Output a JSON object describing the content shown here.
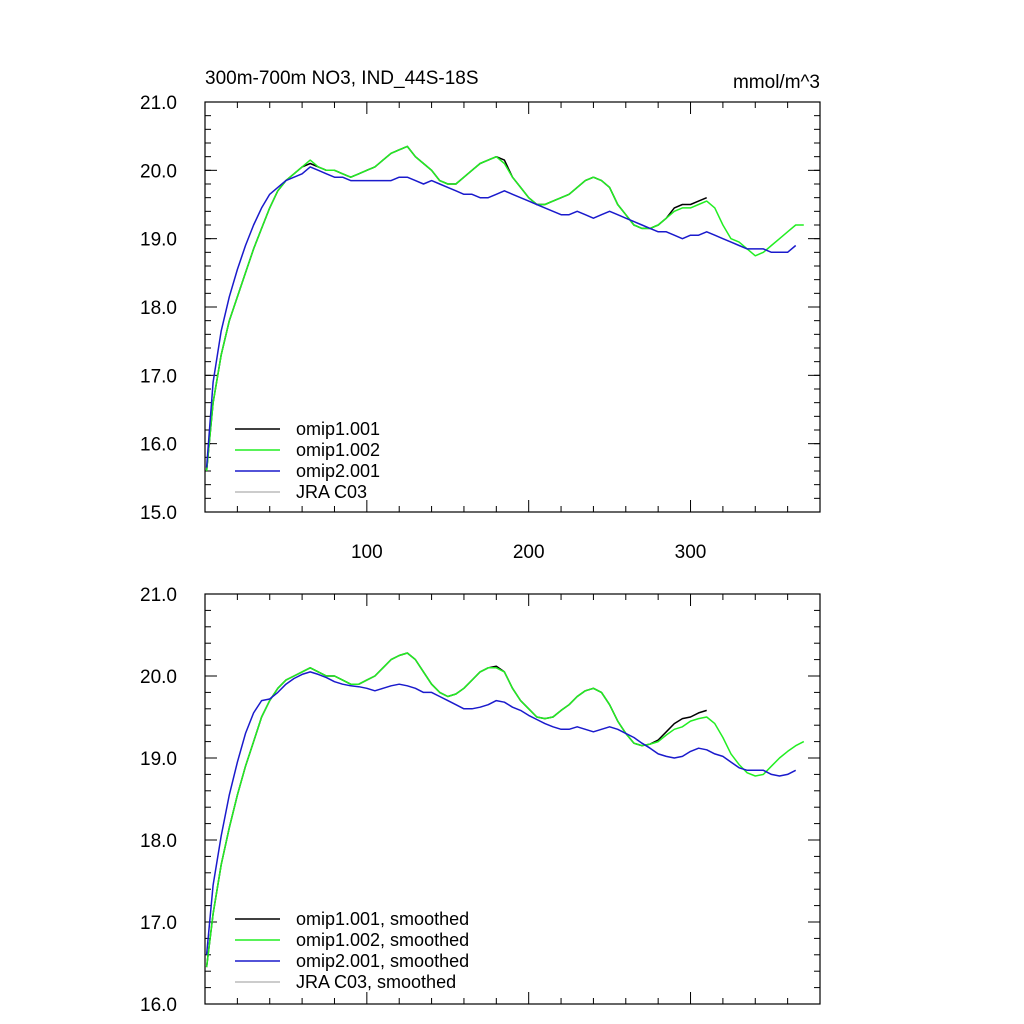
{
  "chart_data": [
    {
      "type": "line",
      "title_left": "300m-700m NO3, IND_44S-18S",
      "title_right": "mmol/m^3",
      "xlim": [
        0,
        380
      ],
      "ylim": [
        15.0,
        21.0
      ],
      "ytick_labels": [
        "15.0",
        "16.0",
        "17.0",
        "18.0",
        "19.0",
        "20.0",
        "21.0"
      ],
      "xtick_labels": [
        "100",
        "200",
        "300"
      ],
      "legend": [
        "omip1.001",
        "omip1.002",
        "omip2.001",
        "JRA C03"
      ],
      "legend_placement": "bottom-left",
      "series": [
        {
          "name": "omip1.001",
          "color": "#000000",
          "x": [
            1,
            5,
            10,
            15,
            20,
            25,
            30,
            35,
            40,
            45,
            50,
            55,
            60,
            65,
            70,
            75,
            80,
            85,
            90,
            95,
            100,
            105,
            110,
            115,
            120,
            125,
            130,
            135,
            140,
            145,
            150,
            155,
            160,
            165,
            170,
            175,
            180,
            185,
            190,
            195,
            200,
            205,
            210,
            215,
            220,
            225,
            230,
            235,
            240,
            245,
            250,
            255,
            260,
            265,
            270,
            275,
            280,
            285,
            290,
            295,
            300,
            305,
            310
          ],
          "y": [
            15.6,
            16.6,
            17.3,
            17.8,
            18.15,
            18.5,
            18.85,
            19.15,
            19.45,
            19.7,
            19.85,
            19.95,
            20.05,
            20.1,
            20.05,
            20.0,
            20.0,
            19.95,
            19.9,
            19.95,
            20.0,
            20.05,
            20.15,
            20.25,
            20.3,
            20.35,
            20.2,
            20.1,
            20.0,
            19.85,
            19.8,
            19.8,
            19.9,
            20.0,
            20.1,
            20.15,
            20.2,
            20.15,
            19.9,
            19.75,
            19.6,
            19.5,
            19.5,
            19.55,
            19.6,
            19.65,
            19.75,
            19.85,
            19.9,
            19.85,
            19.75,
            19.5,
            19.35,
            19.2,
            19.15,
            19.15,
            19.2,
            19.3,
            19.45,
            19.5,
            19.5,
            19.55,
            19.6
          ]
        },
        {
          "name": "omip1.002",
          "color": "#22ee22",
          "x": [
            1,
            5,
            10,
            15,
            20,
            25,
            30,
            35,
            40,
            45,
            50,
            55,
            60,
            65,
            70,
            75,
            80,
            85,
            90,
            95,
            100,
            105,
            110,
            115,
            120,
            125,
            130,
            135,
            140,
            145,
            150,
            155,
            160,
            165,
            170,
            175,
            180,
            185,
            190,
            195,
            200,
            205,
            210,
            215,
            220,
            225,
            230,
            235,
            240,
            245,
            250,
            255,
            260,
            265,
            270,
            275,
            280,
            285,
            290,
            295,
            300,
            305,
            310,
            315,
            320,
            325,
            330,
            335,
            340,
            345,
            350,
            355,
            360,
            365,
            370
          ],
          "y": [
            15.6,
            16.6,
            17.3,
            17.8,
            18.15,
            18.5,
            18.85,
            19.15,
            19.45,
            19.7,
            19.85,
            19.95,
            20.05,
            20.15,
            20.05,
            20.0,
            20.0,
            19.95,
            19.9,
            19.95,
            20.0,
            20.05,
            20.15,
            20.25,
            20.3,
            20.35,
            20.2,
            20.1,
            20.0,
            19.85,
            19.8,
            19.8,
            19.9,
            20.0,
            20.1,
            20.15,
            20.2,
            20.1,
            19.9,
            19.75,
            19.6,
            19.5,
            19.5,
            19.55,
            19.6,
            19.65,
            19.75,
            19.85,
            19.9,
            19.85,
            19.75,
            19.5,
            19.35,
            19.2,
            19.15,
            19.15,
            19.2,
            19.3,
            19.4,
            19.45,
            19.45,
            19.5,
            19.55,
            19.45,
            19.2,
            19.0,
            18.95,
            18.85,
            18.75,
            18.8,
            18.9,
            19.0,
            19.1,
            19.2,
            19.2
          ]
        },
        {
          "name": "omip2.001",
          "color": "#1a1acc",
          "x": [
            1,
            5,
            10,
            15,
            20,
            25,
            30,
            35,
            40,
            45,
            50,
            55,
            60,
            65,
            70,
            75,
            80,
            85,
            90,
            95,
            100,
            105,
            110,
            115,
            120,
            125,
            130,
            135,
            140,
            145,
            150,
            155,
            160,
            165,
            170,
            175,
            180,
            185,
            190,
            195,
            200,
            205,
            210,
            215,
            220,
            225,
            230,
            235,
            240,
            245,
            250,
            255,
            260,
            265,
            270,
            275,
            280,
            285,
            290,
            295,
            300,
            305,
            310,
            315,
            320,
            325,
            330,
            335,
            340,
            345,
            350,
            355,
            360,
            365
          ],
          "y": [
            15.65,
            16.9,
            17.65,
            18.15,
            18.55,
            18.9,
            19.2,
            19.45,
            19.65,
            19.75,
            19.85,
            19.9,
            19.95,
            20.05,
            20.0,
            19.95,
            19.9,
            19.9,
            19.85,
            19.85,
            19.85,
            19.85,
            19.85,
            19.85,
            19.9,
            19.9,
            19.85,
            19.8,
            19.85,
            19.8,
            19.75,
            19.7,
            19.65,
            19.65,
            19.6,
            19.6,
            19.65,
            19.7,
            19.65,
            19.6,
            19.55,
            19.5,
            19.45,
            19.4,
            19.35,
            19.35,
            19.4,
            19.35,
            19.3,
            19.35,
            19.4,
            19.35,
            19.3,
            19.25,
            19.2,
            19.15,
            19.1,
            19.1,
            19.05,
            19.0,
            19.05,
            19.05,
            19.1,
            19.05,
            19.0,
            18.95,
            18.9,
            18.85,
            18.85,
            18.85,
            18.8,
            18.8,
            18.8,
            18.9
          ]
        },
        {
          "name": "JRA C03",
          "color": "#bbbbbb",
          "x": [],
          "y": []
        }
      ]
    },
    {
      "type": "line",
      "xlim": [
        0,
        380
      ],
      "ylim": [
        16.0,
        21.0
      ],
      "ytick_labels": [
        "16.0",
        "17.0",
        "18.0",
        "19.0",
        "20.0",
        "21.0"
      ],
      "legend": [
        "omip1.001, smoothed",
        "omip1.002, smoothed",
        "omip2.001, smoothed",
        "JRA C03, smoothed"
      ],
      "legend_placement": "bottom-left",
      "series": [
        {
          "name": "omip1.001, smoothed",
          "color": "#000000",
          "x": [
            1,
            5,
            10,
            15,
            20,
            25,
            30,
            35,
            40,
            45,
            50,
            55,
            60,
            65,
            70,
            75,
            80,
            85,
            90,
            95,
            100,
            105,
            110,
            115,
            120,
            125,
            130,
            135,
            140,
            145,
            150,
            155,
            160,
            165,
            170,
            175,
            180,
            185,
            190,
            195,
            200,
            205,
            210,
            215,
            220,
            225,
            230,
            235,
            240,
            245,
            250,
            255,
            260,
            265,
            270,
            275,
            280,
            285,
            290,
            295,
            300,
            305,
            310
          ],
          "y": [
            16.45,
            17.1,
            17.7,
            18.15,
            18.55,
            18.9,
            19.2,
            19.5,
            19.7,
            19.85,
            19.95,
            20.0,
            20.05,
            20.1,
            20.05,
            20.0,
            20.0,
            19.95,
            19.9,
            19.9,
            19.95,
            20.0,
            20.1,
            20.2,
            20.25,
            20.28,
            20.2,
            20.05,
            19.9,
            19.8,
            19.75,
            19.78,
            19.85,
            19.95,
            20.05,
            20.1,
            20.12,
            20.05,
            19.85,
            19.7,
            19.6,
            19.5,
            19.48,
            19.5,
            19.58,
            19.65,
            19.75,
            19.82,
            19.85,
            19.8,
            19.65,
            19.45,
            19.3,
            19.18,
            19.15,
            19.17,
            19.22,
            19.32,
            19.42,
            19.48,
            19.5,
            19.55,
            19.58
          ]
        },
        {
          "name": "omip1.002, smoothed",
          "color": "#22ee22",
          "x": [
            1,
            5,
            10,
            15,
            20,
            25,
            30,
            35,
            40,
            45,
            50,
            55,
            60,
            65,
            70,
            75,
            80,
            85,
            90,
            95,
            100,
            105,
            110,
            115,
            120,
            125,
            130,
            135,
            140,
            145,
            150,
            155,
            160,
            165,
            170,
            175,
            180,
            185,
            190,
            195,
            200,
            205,
            210,
            215,
            220,
            225,
            230,
            235,
            240,
            245,
            250,
            255,
            260,
            265,
            270,
            275,
            280,
            285,
            290,
            295,
            300,
            305,
            310,
            315,
            320,
            325,
            330,
            335,
            340,
            345,
            350,
            355,
            360,
            365,
            370
          ],
          "y": [
            16.45,
            17.1,
            17.7,
            18.15,
            18.55,
            18.9,
            19.2,
            19.5,
            19.7,
            19.85,
            19.95,
            20.0,
            20.05,
            20.1,
            20.05,
            20.0,
            20.0,
            19.95,
            19.9,
            19.9,
            19.95,
            20.0,
            20.1,
            20.2,
            20.25,
            20.28,
            20.2,
            20.05,
            19.9,
            19.8,
            19.75,
            19.78,
            19.85,
            19.95,
            20.05,
            20.1,
            20.1,
            20.05,
            19.85,
            19.7,
            19.6,
            19.5,
            19.48,
            19.5,
            19.58,
            19.65,
            19.75,
            19.82,
            19.85,
            19.8,
            19.65,
            19.45,
            19.3,
            19.18,
            19.15,
            19.17,
            19.2,
            19.28,
            19.35,
            19.38,
            19.45,
            19.48,
            19.5,
            19.42,
            19.25,
            19.05,
            18.92,
            18.82,
            18.78,
            18.8,
            18.9,
            19.0,
            19.08,
            19.15,
            19.2
          ]
        },
        {
          "name": "omip2.001, smoothed",
          "color": "#1a1acc",
          "x": [
            1,
            5,
            10,
            15,
            20,
            25,
            30,
            35,
            40,
            45,
            50,
            55,
            60,
            65,
            70,
            75,
            80,
            85,
            90,
            95,
            100,
            105,
            110,
            115,
            120,
            125,
            130,
            135,
            140,
            145,
            150,
            155,
            160,
            165,
            170,
            175,
            180,
            185,
            190,
            195,
            200,
            205,
            210,
            215,
            220,
            225,
            230,
            235,
            240,
            245,
            250,
            255,
            260,
            265,
            270,
            275,
            280,
            285,
            290,
            295,
            300,
            305,
            310,
            315,
            320,
            325,
            330,
            335,
            340,
            345,
            350,
            355,
            360,
            365
          ],
          "y": [
            16.6,
            17.45,
            18.05,
            18.55,
            18.95,
            19.3,
            19.55,
            19.7,
            19.72,
            19.8,
            19.9,
            19.97,
            20.02,
            20.05,
            20.02,
            19.98,
            19.93,
            19.9,
            19.88,
            19.87,
            19.85,
            19.82,
            19.85,
            19.88,
            19.9,
            19.88,
            19.85,
            19.8,
            19.8,
            19.75,
            19.7,
            19.65,
            19.6,
            19.6,
            19.62,
            19.65,
            19.7,
            19.68,
            19.62,
            19.58,
            19.52,
            19.47,
            19.42,
            19.38,
            19.35,
            19.35,
            19.38,
            19.35,
            19.32,
            19.35,
            19.38,
            19.35,
            19.3,
            19.25,
            19.18,
            19.12,
            19.05,
            19.02,
            19.0,
            19.02,
            19.08,
            19.12,
            19.1,
            19.05,
            19.02,
            18.95,
            18.88,
            18.85,
            18.85,
            18.85,
            18.8,
            18.78,
            18.8,
            18.85
          ]
        },
        {
          "name": "JRA C03, smoothed",
          "color": "#bbbbbb",
          "x": [],
          "y": []
        }
      ]
    }
  ]
}
